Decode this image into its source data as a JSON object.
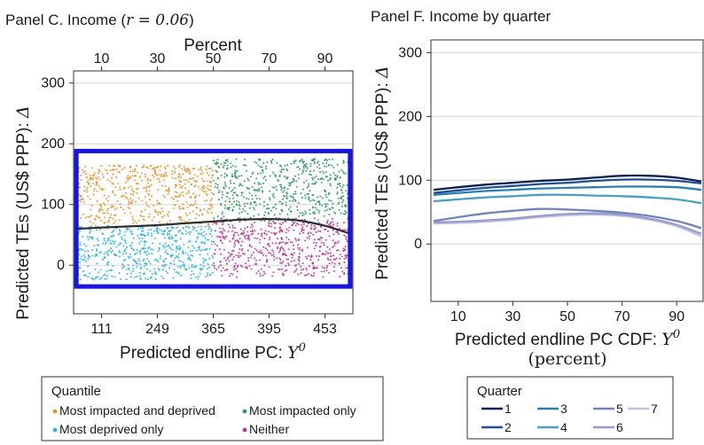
{
  "chart_data": [
    {
      "type": "scatter",
      "title": "Panel C. Income (",
      "title_math": "r = 0.06",
      "title_close": ")",
      "xlabel": "Predicted endline PC: ",
      "xlabel_math": "Y",
      "xlabel_sup": "0",
      "ylabel": "Predicted TEs (US$ PPP): ",
      "ylabel_math": "Δ",
      "top_xlabel": "Percent",
      "top_ticks": [
        10,
        30,
        50,
        70,
        90
      ],
      "top_xlim": [
        0,
        100
      ],
      "bottom_ticks": [
        {
          "pct": 10,
          "label": "111"
        },
        {
          "pct": 30,
          "label": "249"
        },
        {
          "pct": 50,
          "label": "365"
        },
        {
          "pct": 70,
          "label": "395"
        },
        {
          "pct": 90,
          "label": "453"
        }
      ],
      "ylim": [
        -80,
        320
      ],
      "y_ticks": [
        0,
        100,
        200,
        300
      ],
      "grid": true,
      "highlight_box": {
        "x": [
          1,
          99
        ],
        "y": [
          -35,
          188
        ],
        "color": "#1616e0"
      },
      "groups": [
        {
          "name": "Most impacted and deprived",
          "color": "#e8932a",
          "x_range": [
            1,
            50
          ],
          "y_range": [
            60,
            165
          ]
        },
        {
          "name": "Most impacted only",
          "color": "#2e9a5c",
          "x_range": [
            50,
            99
          ],
          "y_range": [
            70,
            175
          ]
        },
        {
          "name": "Most deprived only",
          "color": "#27b4e6",
          "x_range": [
            1,
            50
          ],
          "y_range": [
            -25,
            65
          ]
        },
        {
          "name": "Neither",
          "color": "#b8349a",
          "x_range": [
            50,
            99
          ],
          "y_range": [
            -20,
            78
          ]
        }
      ],
      "fit_line": {
        "x": [
          1,
          10,
          20,
          30,
          40,
          50,
          60,
          70,
          80,
          90,
          99
        ],
        "y": [
          60,
          62,
          64,
          66,
          69,
          72,
          75,
          76,
          74,
          65,
          52
        ]
      },
      "legend": {
        "title": "Quantile",
        "placement": "bottom",
        "entries": [
          {
            "label": "Most impacted and deprived",
            "color": "#e8932a"
          },
          {
            "label": "Most impacted only",
            "color": "#2e9a5c"
          },
          {
            "label": "Most deprived only",
            "color": "#27b4e6"
          },
          {
            "label": "Neither",
            "color": "#b8349a"
          }
        ]
      }
    },
    {
      "type": "line",
      "title": "Panel F. Income by quarter",
      "xlabel": "Predicted endline PC CDF: ",
      "xlabel_math": "Y",
      "xlabel_sup": "0",
      "xlabel_line2": "(percent)",
      "ylabel": "Predicted TEs (US$ PPP): ",
      "ylabel_math": "Δ",
      "xlim": [
        0,
        100
      ],
      "x_ticks": [
        10,
        30,
        50,
        70,
        90
      ],
      "ylim": [
        -90,
        320
      ],
      "y_ticks": [
        0,
        100,
        200,
        300
      ],
      "grid": true,
      "x": [
        1,
        10,
        20,
        30,
        40,
        50,
        60,
        70,
        80,
        90,
        99
      ],
      "series": [
        {
          "name": "1",
          "color": "#0b1f4e",
          "values": [
            85,
            89,
            93,
            96,
            99,
            101,
            104,
            107,
            107,
            104,
            98
          ]
        },
        {
          "name": "2",
          "color": "#1f4f94",
          "values": [
            80,
            84,
            88,
            91,
            94,
            96,
            99,
            101,
            101,
            99,
            95
          ]
        },
        {
          "name": "3",
          "color": "#2d80b0",
          "values": [
            77,
            80,
            83,
            85,
            87,
            88,
            89,
            90,
            90,
            89,
            85
          ]
        },
        {
          "name": "4",
          "color": "#4aa0c2",
          "values": [
            67,
            70,
            73,
            75,
            77,
            77,
            76,
            75,
            73,
            70,
            64
          ]
        },
        {
          "name": "5",
          "color": "#6f84b9",
          "values": [
            36,
            42,
            48,
            52,
            55,
            54,
            52,
            49,
            44,
            36,
            25
          ]
        },
        {
          "name": "6",
          "color": "#9a9acb",
          "values": [
            34,
            35,
            37,
            40,
            44,
            47,
            48,
            46,
            40,
            30,
            16
          ]
        },
        {
          "name": "7",
          "color": "#c1c1e6",
          "values": [
            32,
            33,
            35,
            38,
            42,
            45,
            46,
            44,
            38,
            28,
            12
          ]
        }
      ],
      "legend": {
        "title": "Quarter",
        "placement": "bottom",
        "entries": [
          "1",
          "2",
          "3",
          "4",
          "5",
          "6",
          "7"
        ]
      }
    }
  ]
}
